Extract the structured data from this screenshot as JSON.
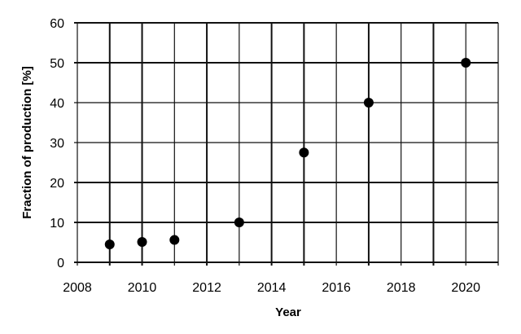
{
  "chart_data": {
    "type": "scatter",
    "title": "",
    "xlabel": "Year",
    "ylabel": "Fraction of production [%]",
    "xlim": [
      2008,
      2021
    ],
    "ylim": [
      0,
      60
    ],
    "xticks": [
      2008,
      2010,
      2012,
      2014,
      2016,
      2018,
      2020
    ],
    "yticks": [
      0,
      10,
      20,
      30,
      40,
      50,
      60
    ],
    "grid": true,
    "series": [
      {
        "x": [
          2009,
          2010,
          2011,
          2013,
          2015,
          2017,
          2020
        ],
        "y": [
          4.5,
          5.1,
          5.6,
          10,
          27.5,
          40,
          50
        ],
        "color": "#000000"
      }
    ]
  }
}
